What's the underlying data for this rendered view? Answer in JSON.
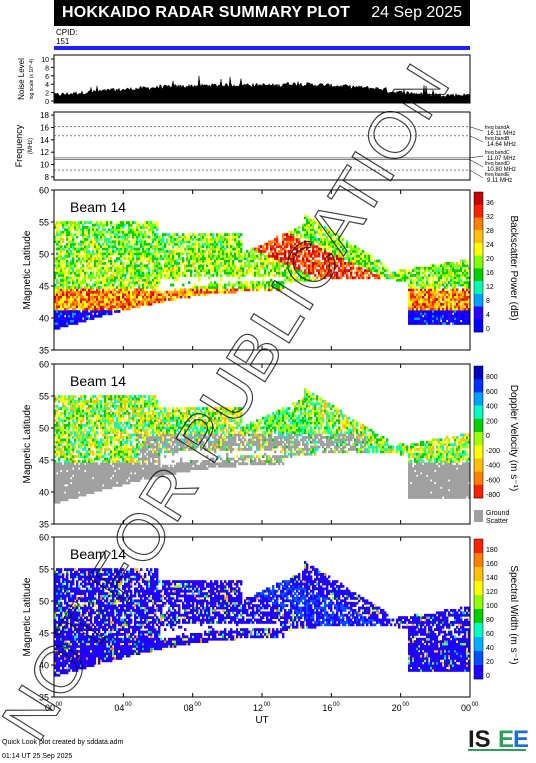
{
  "title": "HOKKAIDO RADAR SUMMARY PLOT",
  "date": "24 Sep 2025",
  "cpid": {
    "label": "CPID:",
    "value": "151"
  },
  "noise_panel": {
    "ylabel": "Noise Level",
    "ylabel_sub": "log scale (x 10^-4)",
    "yticks": [
      "10",
      "8",
      "6",
      "4",
      "2",
      "0"
    ]
  },
  "frequency_panel": {
    "ylabel": "Frequency",
    "ylabel_unit": "(MHz)",
    "yticks": [
      "18",
      "16",
      "14",
      "12",
      "10",
      "8"
    ],
    "bands": [
      {
        "label": "freq bandA",
        "freq": "16.11 MHz"
      },
      {
        "label": "freq bandB",
        "freq": "14.64 MHz"
      },
      {
        "label": "freq bandC",
        "freq": "11.07 MHz"
      },
      {
        "label": "freq bandD",
        "freq": "10.80 MHz"
      },
      {
        "label": "freq bandE",
        "freq": "9.11 MHz"
      }
    ]
  },
  "x_axis": {
    "ticks": [
      "00",
      "04",
      "08",
      "12",
      "16",
      "20",
      "00"
    ],
    "tick_sup": "00",
    "label": "UT"
  },
  "footer": {
    "line1": "Quick Look plot created by sddata.adm",
    "line2": "01:14 UT 25 Sep 2025"
  },
  "logo_text": "ISEE",
  "watermark": "NOT FOR PUBLICATION",
  "chart_data": [
    {
      "type": "heatmap",
      "beam_label": "Beam 14",
      "ylabel": "Magnetic Latitude",
      "ylim": [
        35,
        60
      ],
      "yticks": [
        "60",
        "55",
        "50",
        "45",
        "40",
        "35"
      ],
      "colorbar": {
        "label": "Backscatter Power (dB)",
        "ticks": [
          "36",
          "32",
          "28",
          "24",
          "20",
          "16",
          "12",
          "8",
          "4",
          "0"
        ],
        "range": [
          0,
          36
        ],
        "palette": [
          "#0000ff",
          "#2a00ff",
          "#00a0ff",
          "#00ffb0",
          "#00d000",
          "#80ff00",
          "#ffff00",
          "#ffc000",
          "#ff8000",
          "#ff2000",
          "#c80000"
        ]
      },
      "mode": "power"
    },
    {
      "type": "heatmap",
      "beam_label": "Beam 14",
      "ylabel": "Magnetic Latitude",
      "ylim": [
        35,
        60
      ],
      "yticks": [
        "60",
        "55",
        "50",
        "45",
        "40",
        "35"
      ],
      "colorbar": {
        "label": "Doppler Velocity (m s⁻¹)",
        "ticks": [
          "800",
          "600",
          "400",
          "200",
          "0",
          "-200",
          "-400",
          "-600",
          "-800"
        ],
        "range": [
          -800,
          800
        ],
        "palette": [
          "#ff2000",
          "#ff8000",
          "#ffc000",
          "#ffff00",
          "#a0ff00",
          "#00d000",
          "#00ffc0",
          "#00a0ff",
          "#0030ff",
          "#0000c0"
        ],
        "ground_scatter_label": [
          "Ground",
          "Scatter"
        ]
      },
      "mode": "velocity"
    },
    {
      "type": "heatmap",
      "beam_label": "Beam 14",
      "ylabel": "Magnetic Latitude",
      "ylim": [
        35,
        60
      ],
      "yticks": [
        "60",
        "55",
        "50",
        "45",
        "40",
        "35"
      ],
      "colorbar": {
        "label": "Spectral Width (m s⁻¹)",
        "ticks": [
          "180",
          "160",
          "140",
          "120",
          "100",
          "80",
          "60",
          "40",
          "20",
          "0"
        ],
        "range": [
          0,
          180
        ],
        "palette": [
          "#2000ff",
          "#0050ff",
          "#00b0ff",
          "#00ffc0",
          "#00d000",
          "#90ff00",
          "#ffff00",
          "#ffc000",
          "#ff8000",
          "#ff2000"
        ]
      },
      "mode": "width"
    }
  ],
  "colors": {
    "title_bg": "#000000",
    "cpid_bar": "#1f1fff",
    "ground_scatter": "#a0a0a0"
  }
}
